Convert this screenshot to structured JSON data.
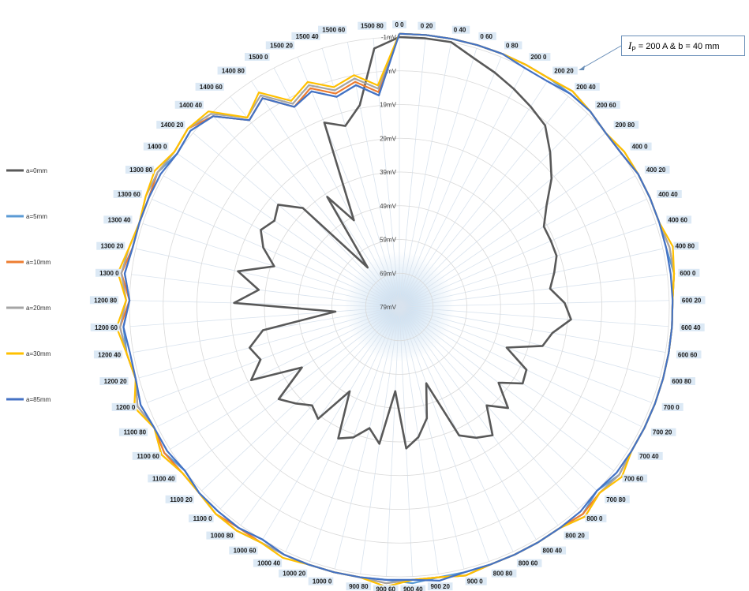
{
  "chart_data": {
    "type": "radar",
    "categories": [
      "0 0",
      "0 20",
      "0 40",
      "0 60",
      "0 80",
      "200 0",
      "200 20",
      "200 40",
      "200 60",
      "200 80",
      "400 0",
      "400 20",
      "400 40",
      "400 60",
      "400 80",
      "600 0",
      "600 20",
      "600 40",
      "600 60",
      "600 80",
      "700 0",
      "700 20",
      "700 40",
      "700 60",
      "700 80",
      "800 0",
      "800 20",
      "800 40",
      "800 60",
      "800 80",
      "900 0",
      "900 20",
      "900 40",
      "900 60",
      "900 80",
      "1000 0",
      "1000 20",
      "1000 40",
      "1000 60",
      "1000 80",
      "1100 0",
      "1100 20",
      "1100 40",
      "1100 60",
      "1100 80",
      "1200 0",
      "1200 20",
      "1200 40",
      "1200 60",
      "1200 80",
      "1300 0",
      "1300 20",
      "1300 40",
      "1300 60",
      "1300 80",
      "1400 0",
      "1400 20",
      "1400 40",
      "1400 60",
      "1400 80",
      "1500 0",
      "1500 20",
      "1500 40",
      "1500 60",
      "1500 80"
    ],
    "radial_axis": {
      "tick_labels": [
        "-1mV",
        "9mV",
        "19mV",
        "29mV",
        "39mV",
        "49mV",
        "59mV",
        "69mV",
        "79mV"
      ],
      "inner": 79,
      "outer": -1
    },
    "series": [
      {
        "name": "a=0mm",
        "color": "#595959",
        "values": [
          -1,
          -1,
          -1,
          2,
          4,
          6,
          8,
          10,
          15,
          20,
          26,
          30,
          30,
          30,
          32,
          34,
          30,
          28,
          33,
          35,
          45,
          37,
          36,
          42,
          35,
          40,
          32,
          34,
          37,
          55,
          45,
          40,
          37,
          54,
          38,
          42,
          38,
          36,
          50,
          38,
          40,
          37,
          34,
          45,
          30,
          35,
          33,
          38,
          60,
          30,
          37,
          30,
          40,
          35,
          32,
          34,
          32,
          38,
          64,
          40,
          50,
          20,
          23,
          18,
          2
        ]
      },
      {
        "name": "a=5mm",
        "color": "#5b9bd5",
        "values": [
          -2,
          -2,
          -2,
          -2,
          -2,
          -2,
          -2,
          -2,
          -2,
          -1,
          -1,
          -2,
          -2,
          -2,
          -2,
          -3,
          -2,
          -2,
          -2,
          -2,
          -2,
          -2,
          -2,
          -3,
          -1,
          -3,
          -2,
          -2,
          -2,
          -2,
          -2,
          -2,
          -3,
          -2,
          -2,
          -2,
          -2,
          -2,
          -1,
          -2,
          -2,
          -2,
          -1,
          -3,
          -2,
          -3,
          -2,
          -3,
          -3,
          -1,
          -3,
          -2,
          -2,
          -2,
          -3,
          -1,
          -2,
          0,
          8,
          5,
          12,
          10,
          14,
          12,
          16
        ]
      },
      {
        "name": "a=10mm",
        "color": "#ed7d31",
        "values": [
          -2,
          -2,
          -2,
          -2,
          -2,
          -2,
          -2,
          -3,
          -2,
          -1,
          -1,
          -2,
          -2,
          -2,
          -3,
          -3,
          -2,
          -2,
          -2,
          -2,
          -2,
          -2,
          -2,
          -3,
          -2,
          -3,
          -2,
          -2,
          -2,
          -2,
          -3,
          -2,
          -2,
          -3,
          -2,
          -2,
          -2,
          -2,
          -2,
          -2,
          -3,
          -2,
          -2,
          -3,
          -2,
          -4,
          -2,
          -3,
          -4,
          -1,
          -4,
          -2,
          -2,
          -2,
          -3,
          -2,
          -3,
          0,
          8,
          5,
          12,
          9,
          13,
          11,
          15
        ]
      },
      {
        "name": "a=20mm",
        "color": "#a5a5a5",
        "values": [
          -2,
          -2,
          -2,
          -2,
          -2,
          -2,
          -2,
          -3,
          -2,
          -1,
          -2,
          -2,
          -2,
          -2,
          -3,
          -3,
          -2,
          -2,
          -2,
          -2,
          -2,
          -2,
          -2,
          -3,
          -2,
          -4,
          -2,
          -2,
          -2,
          -2,
          -3,
          -2,
          -2,
          -3,
          -2,
          -2,
          -2,
          -2,
          -2,
          -3,
          -3,
          -2,
          -2,
          -4,
          -2,
          -4,
          -2,
          -3,
          -4,
          -2,
          -4,
          -3,
          -2,
          -3,
          -3,
          -2,
          -3,
          -1,
          7,
          4,
          11,
          8,
          12,
          10,
          14
        ]
      },
      {
        "name": "a=30mm",
        "color": "#ffc000",
        "values": [
          -2,
          -2,
          -2,
          -2,
          -2,
          -2,
          -2,
          -3,
          -2,
          -1,
          -2,
          -2,
          -2,
          -2,
          -4,
          -3,
          -2,
          -2,
          -2,
          -2,
          -2,
          -2,
          -2,
          -4,
          -2,
          -4,
          -2,
          -2,
          -2,
          -2,
          -3,
          -2,
          -2,
          -4,
          -2,
          -2,
          -2,
          -3,
          -2,
          -3,
          -3,
          -2,
          -2,
          -4,
          -2,
          -5,
          -2,
          -3,
          -5,
          -2,
          -5,
          -3,
          -2,
          -3,
          -4,
          -2,
          -3,
          -2,
          7,
          3,
          10,
          7,
          11,
          9,
          13
        ]
      },
      {
        "name": "a=85mm",
        "color": "#4472c4",
        "values": [
          -2,
          -2,
          -2,
          -2,
          -2,
          -1,
          -1,
          -2,
          -2,
          -1,
          -1,
          -2,
          -2,
          -2,
          -2,
          -2,
          -2,
          -2,
          -2,
          -2,
          -2,
          -2,
          -2,
          -2,
          -1,
          -2,
          -2,
          -2,
          -2,
          -2,
          -2,
          -3,
          -2,
          -2,
          -2,
          -2,
          -2,
          -2,
          -1,
          -2,
          -2,
          -2,
          -1,
          -2,
          -2,
          -3,
          -2,
          -2,
          -3,
          -1,
          -3,
          -2,
          -2,
          -2,
          -2,
          -1,
          -2,
          0,
          8,
          5,
          12,
          10,
          14,
          12,
          16
        ]
      }
    ]
  },
  "annotation": {
    "prefix": "I",
    "sub": "P",
    "suffix": " = 200 A & b = 40 mm"
  }
}
